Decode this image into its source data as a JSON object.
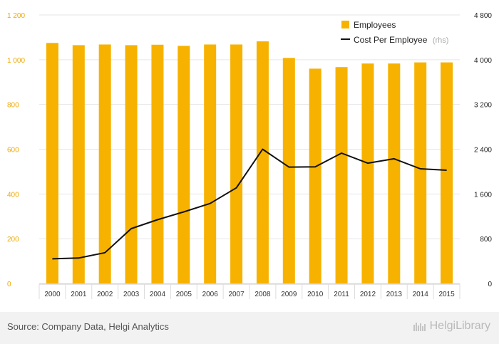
{
  "chart_data": {
    "type": "bar+line",
    "categories": [
      "2000",
      "2001",
      "2002",
      "2003",
      "2004",
      "2005",
      "2006",
      "2007",
      "2008",
      "2009",
      "2010",
      "2011",
      "2012",
      "2013",
      "2014",
      "2015"
    ],
    "series": [
      {
        "name": "Employees",
        "type": "bar",
        "axis": "left",
        "color": "#f7b200",
        "values": [
          1075,
          1065,
          1068,
          1065,
          1067,
          1062,
          1068,
          1068,
          1082,
          1008,
          960,
          967,
          983,
          983,
          988,
          988
        ]
      },
      {
        "name": "Cost Per Employee",
        "unit_note": "(rhs)",
        "type": "line",
        "axis": "right",
        "color": "#111111",
        "values": [
          440,
          455,
          550,
          980,
          1140,
          1280,
          1430,
          1710,
          2400,
          2080,
          2085,
          2330,
          2150,
          2230,
          2050,
          2025
        ]
      }
    ],
    "y_left": {
      "ticks": [
        "1 200",
        "1 000",
        "800",
        "600",
        "400",
        "200",
        "0"
      ],
      "ylim": [
        0,
        1200
      ]
    },
    "y_right": {
      "ticks": [
        "4 800",
        "4 000",
        "3 200",
        "2 400",
        "1 600",
        "800",
        "0"
      ],
      "ylim": [
        0,
        4800
      ]
    },
    "grid": true,
    "legend": "top-right"
  },
  "footer": {
    "source": "Source: Company Data, Helgi Analytics",
    "brand": "HelgiLibrary"
  }
}
